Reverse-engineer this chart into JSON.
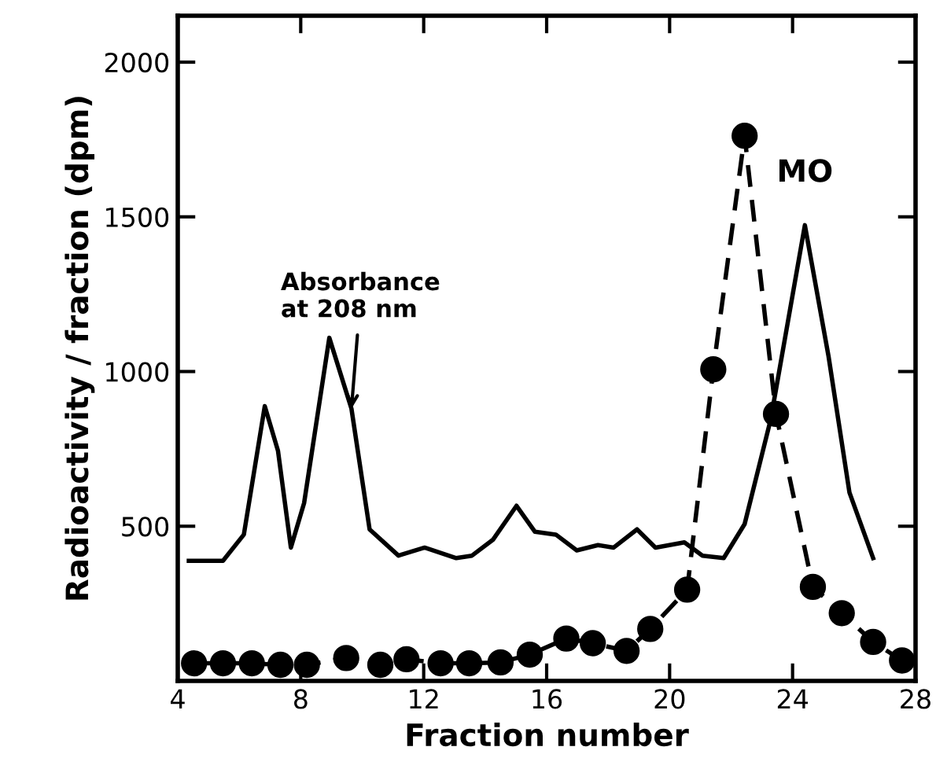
{
  "chart_data": {
    "type": "line",
    "xlabel": "Fraction number",
    "ylabel": "Radioactivity / fraction (dpm)",
    "xlim": [
      4,
      28
    ],
    "xticks": [
      4,
      8,
      12,
      16,
      20,
      24,
      28
    ],
    "ylim": [
      0,
      2150
    ],
    "yticks": [
      500,
      1000,
      1500,
      2000
    ],
    "grid": false,
    "legend": false,
    "series": [
      {
        "color": "#000000",
        "marker": "none",
        "line_style": "solid",
        "x": [
          4.36,
          5.47,
          6.15,
          6.83,
          7.26,
          7.68,
          8.11,
          8.93,
          9.65,
          10.24,
          11.18,
          12.03,
          13.06,
          13.57,
          14.25,
          15.02,
          15.62,
          16.3,
          16.98,
          17.67,
          18.18,
          18.94,
          19.54,
          20.48,
          21.07,
          21.76,
          22.44,
          23.29,
          24.4,
          25.17,
          25.85,
          26.62
        ],
        "values": [
          388,
          388,
          473,
          888,
          744,
          431,
          575,
          1109,
          880,
          490,
          405,
          431,
          397,
          405,
          456,
          566,
          482,
          473,
          422,
          439,
          431,
          490,
          431,
          448,
          405,
          397,
          507,
          846,
          1473,
          1049,
          609,
          397
        ]
      },
      {
        "color": "#000000",
        "marker": "circle",
        "line_style": "dashed",
        "x": [
          4.53,
          5.47,
          6.41,
          7.34,
          8.2,
          9.48,
          10.59,
          11.44,
          12.55,
          13.48,
          14.5,
          15.45,
          16.64,
          17.5,
          18.6,
          19.37,
          20.57,
          21.42,
          22.44,
          23.46,
          24.66,
          25.6,
          26.62,
          27.56
        ],
        "values": [
          57,
          57,
          57,
          52,
          52,
          74,
          52,
          70,
          57,
          57,
          60,
          85,
          137,
          122,
          97,
          168,
          295,
          1007,
          1762,
          863,
          304,
          219,
          126,
          66
        ]
      }
    ],
    "annotations": [
      {
        "text": "Absorbance\nat 208 nm",
        "x": 9.65,
        "y": 880
      },
      {
        "text": "MO",
        "x": 24.4,
        "y": 1473
      }
    ]
  }
}
